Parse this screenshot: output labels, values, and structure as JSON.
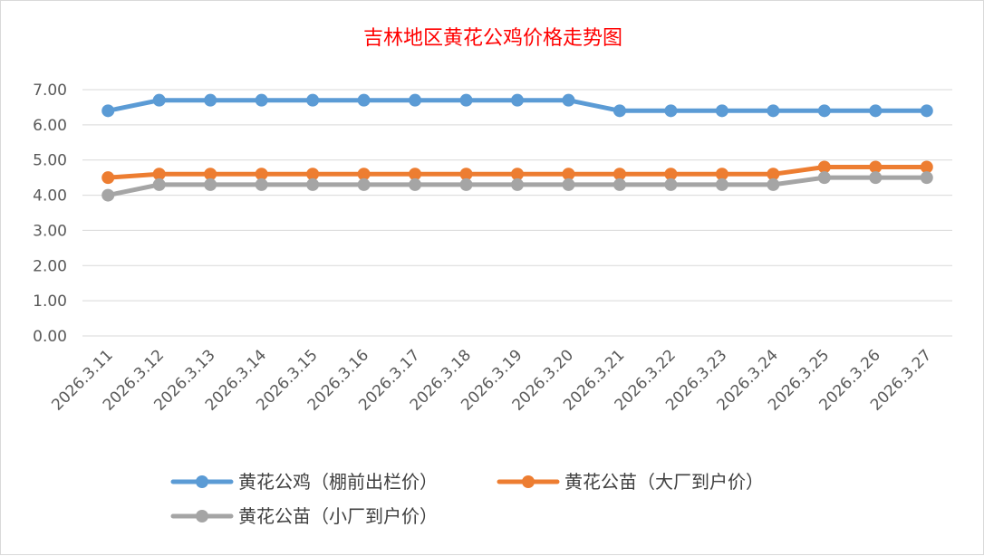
{
  "chart_data": {
    "type": "line",
    "title": "吉林地区黄花公鸡价格走势图",
    "categories": [
      "2026.3.11",
      "2026.3.12",
      "2026.3.13",
      "2026.3.14",
      "2026.3.15",
      "2026.3.16",
      "2026.3.17",
      "2026.3.18",
      "2026.3.19",
      "2026.3.20",
      "2026.3.21",
      "2026.3.22",
      "2026.3.23",
      "2026.3.24",
      "2026.3.25",
      "2026.3.26",
      "2026.3.27"
    ],
    "ylim": [
      0,
      7
    ],
    "yticks": [
      "0.00",
      "1.00",
      "2.00",
      "3.00",
      "4.00",
      "5.00",
      "6.00",
      "7.00"
    ],
    "grid": true,
    "legend_position": "bottom",
    "series": [
      {
        "name": "黄花公鸡（棚前出栏价）",
        "color": "#5b9bd5",
        "values": [
          6.4,
          6.7,
          6.7,
          6.7,
          6.7,
          6.7,
          6.7,
          6.7,
          6.7,
          6.7,
          6.4,
          6.4,
          6.4,
          6.4,
          6.4,
          6.4,
          6.4
        ]
      },
      {
        "name": "黄花公苗（大厂到户价）",
        "color": "#ed7d31",
        "values": [
          4.5,
          4.6,
          4.6,
          4.6,
          4.6,
          4.6,
          4.6,
          4.6,
          4.6,
          4.6,
          4.6,
          4.6,
          4.6,
          4.6,
          4.8,
          4.8,
          4.8
        ]
      },
      {
        "name": "黄花公苗（小厂到户价）",
        "color": "#a5a5a5",
        "values": [
          4.0,
          4.3,
          4.3,
          4.3,
          4.3,
          4.3,
          4.3,
          4.3,
          4.3,
          4.3,
          4.3,
          4.3,
          4.3,
          4.3,
          4.5,
          4.5,
          4.5
        ]
      }
    ]
  }
}
